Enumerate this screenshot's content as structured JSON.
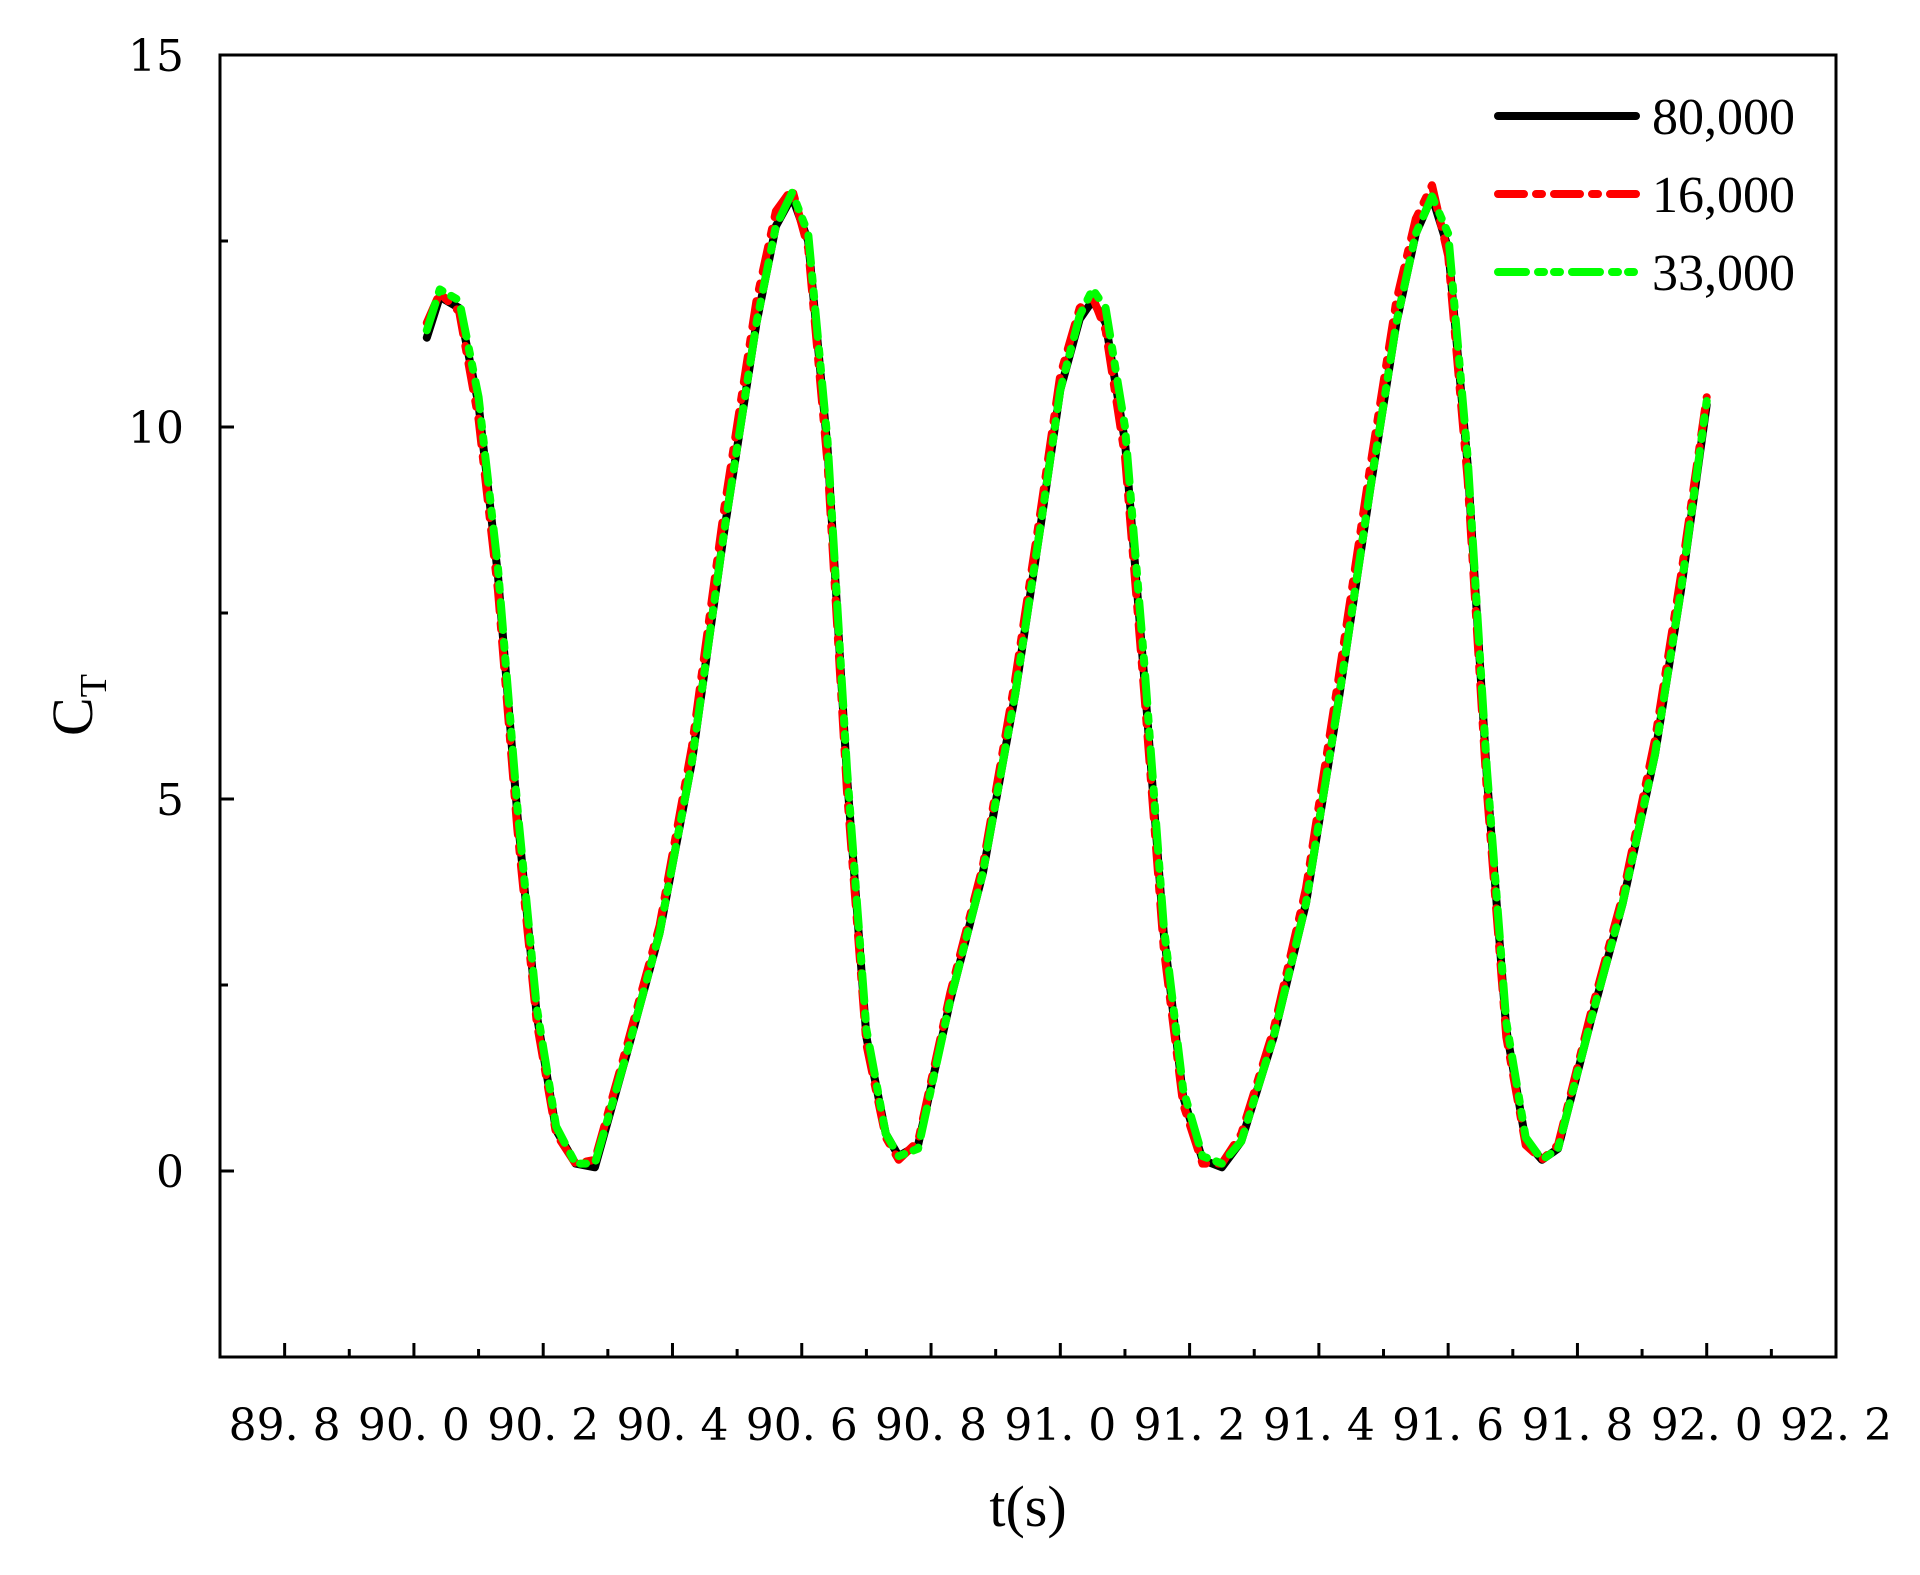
{
  "chart_data": {
    "type": "line",
    "title": "",
    "xlabel": "t(s)",
    "ylabel_main": "C",
    "ylabel_sub": "T",
    "xlim": [
      89.7,
      92.2
    ],
    "ylim": [
      -2.5,
      15
    ],
    "xticks": [
      89.8,
      90.0,
      90.2,
      90.4,
      90.6,
      90.8,
      91.0,
      91.2,
      91.4,
      91.6,
      91.8,
      92.0,
      92.2
    ],
    "xtick_labels": [
      "89. 8",
      "90. 0",
      "90. 2",
      "90. 4",
      "90. 6",
      "90. 8",
      "91. 0",
      "91. 2",
      "91. 4",
      "91. 6",
      "91. 8",
      "92. 0",
      "92. 2"
    ],
    "yticks": [
      0,
      5,
      10,
      15
    ],
    "ytick_labels": [
      "0",
      "5",
      "10",
      "15"
    ],
    "grid": false,
    "legend_position": "top-right",
    "series": [
      {
        "name": "80,000",
        "color": "#000000",
        "dash": "solid",
        "x": [
          90.02,
          90.04,
          90.07,
          90.1,
          90.13,
          90.16,
          90.19,
          90.22,
          90.25,
          90.28,
          90.33,
          90.38,
          90.43,
          90.48,
          90.53,
          90.56,
          90.585,
          90.61,
          90.64,
          90.67,
          90.7,
          90.73,
          90.75,
          90.78,
          90.83,
          90.88,
          90.93,
          90.97,
          91.0,
          91.03,
          91.05,
          91.07,
          91.1,
          91.13,
          91.16,
          91.19,
          91.22,
          91.25,
          91.28,
          91.33,
          91.38,
          91.43,
          91.48,
          91.52,
          91.55,
          91.575,
          91.6,
          91.63,
          91.66,
          91.69,
          91.72,
          91.745,
          91.77,
          91.82,
          91.87,
          91.92,
          91.96,
          92.0
        ],
        "values": [
          11.2,
          11.75,
          11.6,
          10.3,
          8.0,
          4.8,
          2.1,
          0.55,
          0.1,
          0.05,
          1.6,
          3.2,
          5.5,
          8.6,
          11.4,
          12.7,
          13.1,
          12.5,
          9.7,
          5.3,
          1.8,
          0.5,
          0.2,
          0.35,
          2.3,
          4.0,
          6.4,
          8.7,
          10.5,
          11.45,
          11.7,
          11.4,
          9.8,
          6.6,
          3.2,
          1.0,
          0.15,
          0.05,
          0.4,
          1.8,
          3.6,
          6.3,
          9.2,
          11.4,
          12.6,
          13.1,
          12.4,
          9.5,
          5.3,
          1.9,
          0.4,
          0.15,
          0.3,
          2.0,
          3.6,
          5.6,
          7.8,
          10.3
        ]
      },
      {
        "name": "16,000",
        "color": "#ff0000",
        "dash": "dash-dot",
        "x": [
          90.02,
          90.04,
          90.07,
          90.1,
          90.13,
          90.16,
          90.19,
          90.22,
          90.25,
          90.28,
          90.33,
          90.38,
          90.43,
          90.48,
          90.53,
          90.56,
          90.585,
          90.61,
          90.64,
          90.67,
          90.7,
          90.73,
          90.75,
          90.78,
          90.83,
          90.88,
          90.93,
          90.97,
          91.0,
          91.03,
          91.05,
          91.07,
          91.1,
          91.13,
          91.16,
          91.19,
          91.22,
          91.25,
          91.28,
          91.33,
          91.38,
          91.43,
          91.48,
          91.52,
          91.55,
          91.575,
          91.6,
          91.63,
          91.66,
          91.69,
          91.72,
          91.745,
          91.77,
          91.82,
          91.87,
          91.92,
          91.96,
          92.0
        ],
        "values": [
          11.4,
          11.8,
          11.55,
          10.1,
          7.8,
          4.6,
          2.0,
          0.5,
          0.1,
          0.15,
          1.7,
          3.3,
          5.7,
          8.9,
          11.7,
          12.9,
          13.2,
          12.4,
          9.5,
          5.1,
          1.7,
          0.45,
          0.15,
          0.4,
          2.4,
          4.1,
          6.6,
          8.9,
          10.7,
          11.6,
          11.75,
          11.3,
          9.6,
          6.4,
          3.0,
          0.9,
          0.1,
          0.1,
          0.5,
          1.9,
          3.8,
          6.6,
          9.5,
          11.7,
          12.8,
          13.25,
          12.3,
          9.3,
          5.1,
          1.8,
          0.35,
          0.15,
          0.35,
          2.1,
          3.7,
          5.8,
          8.0,
          10.4
        ]
      },
      {
        "name": "33,000",
        "color": "#00ff00",
        "dash": "dash-dot-dot",
        "x": [
          90.02,
          90.04,
          90.07,
          90.1,
          90.13,
          90.16,
          90.19,
          90.22,
          90.25,
          90.28,
          90.33,
          90.38,
          90.43,
          90.48,
          90.53,
          90.56,
          90.585,
          90.61,
          90.64,
          90.67,
          90.7,
          90.73,
          90.75,
          90.78,
          90.83,
          90.88,
          90.93,
          90.97,
          91.0,
          91.03,
          91.05,
          91.07,
          91.1,
          91.13,
          91.16,
          91.19,
          91.22,
          91.25,
          91.28,
          91.33,
          91.38,
          91.43,
          91.48,
          91.52,
          91.55,
          91.575,
          91.6,
          91.63,
          91.66,
          91.69,
          91.72,
          91.745,
          91.77,
          91.82,
          91.87,
          91.92,
          91.96,
          92.0
        ],
        "values": [
          11.3,
          11.85,
          11.7,
          10.4,
          8.1,
          4.9,
          2.2,
          0.6,
          0.1,
          0.1,
          1.6,
          3.2,
          5.5,
          8.6,
          11.4,
          12.7,
          13.15,
          12.6,
          9.8,
          5.4,
          1.9,
          0.5,
          0.2,
          0.3,
          2.3,
          4.0,
          6.4,
          8.7,
          10.5,
          11.5,
          11.85,
          11.6,
          10.0,
          6.8,
          3.3,
          1.1,
          0.2,
          0.1,
          0.4,
          1.8,
          3.6,
          6.3,
          9.2,
          11.4,
          12.6,
          13.1,
          12.6,
          9.6,
          5.4,
          2.0,
          0.45,
          0.15,
          0.3,
          2.0,
          3.6,
          5.6,
          7.8,
          10.35
        ]
      }
    ]
  }
}
